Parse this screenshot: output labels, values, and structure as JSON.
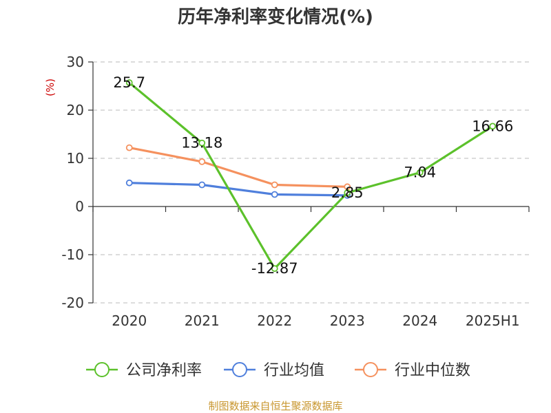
{
  "chart_data": {
    "type": "line",
    "title": "历年净利率变化情况(%)",
    "ylabel": "(%)",
    "ylim": [
      -20,
      30
    ],
    "yticks": [
      30,
      20,
      10,
      0,
      -10,
      -20
    ],
    "grid": true,
    "legend_position": "bottom",
    "categories": [
      "2020",
      "2021",
      "2022",
      "2023",
      "2024",
      "2025H1"
    ],
    "series": [
      {
        "name": "公司净利率",
        "color": "#5cc12b",
        "values": [
          25.7,
          13.18,
          -12.87,
          2.85,
          7.04,
          16.66
        ],
        "labels": [
          "25.7",
          "13.18",
          "-12.87",
          "2.85",
          "7.04",
          "16.66"
        ]
      },
      {
        "name": "行业均值",
        "color": "#4f7fdc",
        "values": [
          4.9,
          4.5,
          2.5,
          2.3,
          null,
          null
        ]
      },
      {
        "name": "行业中位数",
        "color": "#f5915e",
        "values": [
          12.2,
          9.3,
          4.5,
          4.1,
          null,
          null
        ]
      }
    ]
  },
  "source": "制图数据来自恒生聚源数据库"
}
